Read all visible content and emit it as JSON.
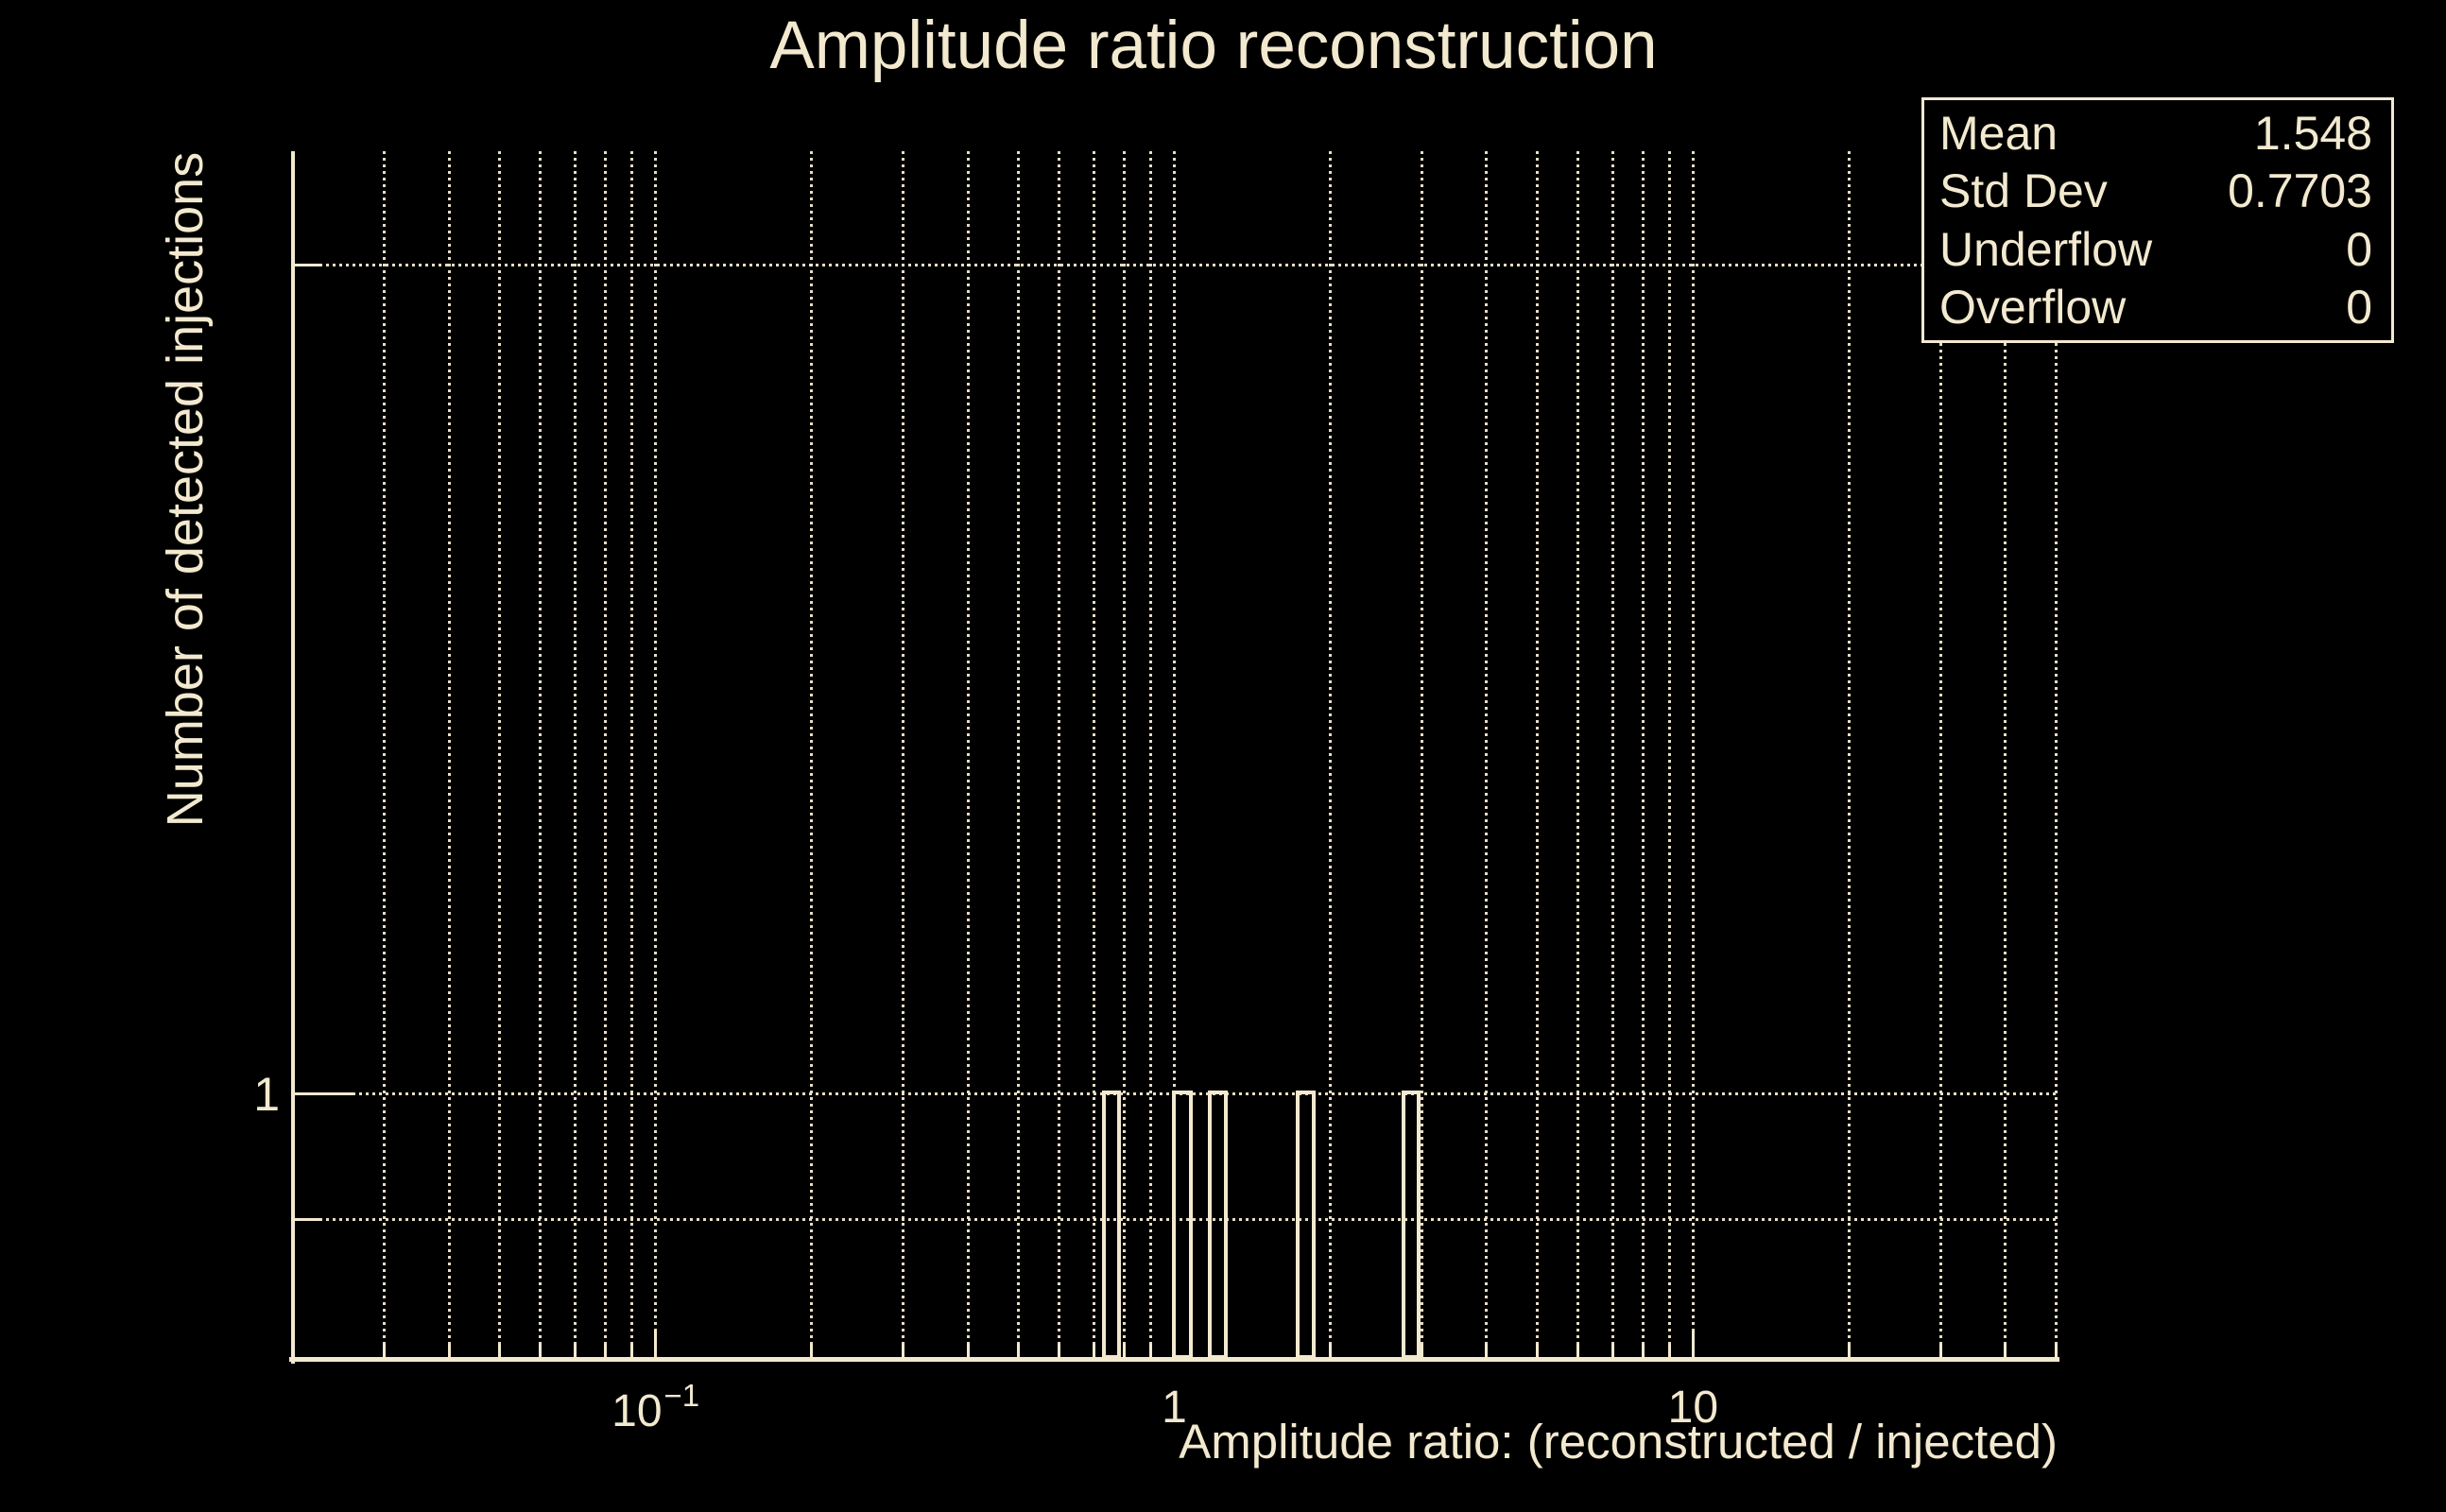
{
  "page": {
    "background": "#000000",
    "foreground": "#f2e9cf"
  },
  "title": {
    "text": "Amplitude ratio reconstruction"
  },
  "stats_box": {
    "rows": [
      {
        "label": "Mean",
        "value": "1.548"
      },
      {
        "label": "Std Dev",
        "value": "0.7703"
      },
      {
        "label": "Underflow",
        "value": "0"
      },
      {
        "label": "Overflow",
        "value": "0"
      }
    ]
  },
  "x_axis": {
    "title": "Amplitude ratio: (reconstructed / injected)",
    "tick_labels": [
      {
        "base": "10",
        "exp": "−1",
        "value": 0.1
      },
      {
        "base": "1",
        "exp": "",
        "value": 1
      },
      {
        "base": "10",
        "exp": "",
        "value": 10
      }
    ]
  },
  "y_axis": {
    "title": "Number of detected injections",
    "tick_labels": [
      {
        "text": "1",
        "value": 1
      }
    ]
  },
  "chart_data": {
    "type": "bar",
    "title": "Amplitude ratio reconstruction",
    "xlabel": "Amplitude ratio: (reconstructed / injected)",
    "ylabel": "Number of detected injections",
    "xscale": "log",
    "yscale": "log",
    "xlim": [
      0.02,
      50
    ],
    "ylim": [
      0.8,
      2.2
    ],
    "grid": true,
    "legend_position": "none",
    "x_major_ticks": [
      0.1,
      1,
      10
    ],
    "x_minor_ticks": [
      0.03,
      0.04,
      0.05,
      0.06,
      0.07,
      0.08,
      0.09,
      0.2,
      0.3,
      0.4,
      0.5,
      0.6,
      0.7,
      0.8,
      0.9,
      2,
      3,
      4,
      5,
      6,
      7,
      8,
      9,
      20,
      30,
      40,
      50
    ],
    "y_major_ticks": [
      1
    ],
    "y_minor_ticks": [
      0.9,
      2
    ],
    "bins": [
      {
        "x_low": 0.725,
        "x_high": 0.79,
        "count": 1
      },
      {
        "x_low": 0.99,
        "x_high": 1.085,
        "count": 1
      },
      {
        "x_low": 1.16,
        "x_high": 1.27,
        "count": 1
      },
      {
        "x_low": 1.715,
        "x_high": 1.87,
        "count": 1
      },
      {
        "x_low": 2.74,
        "x_high": 2.98,
        "count": 1
      }
    ],
    "stats": {
      "mean": 1.548,
      "std_dev": 0.7703,
      "underflow": 0,
      "overflow": 0
    }
  }
}
